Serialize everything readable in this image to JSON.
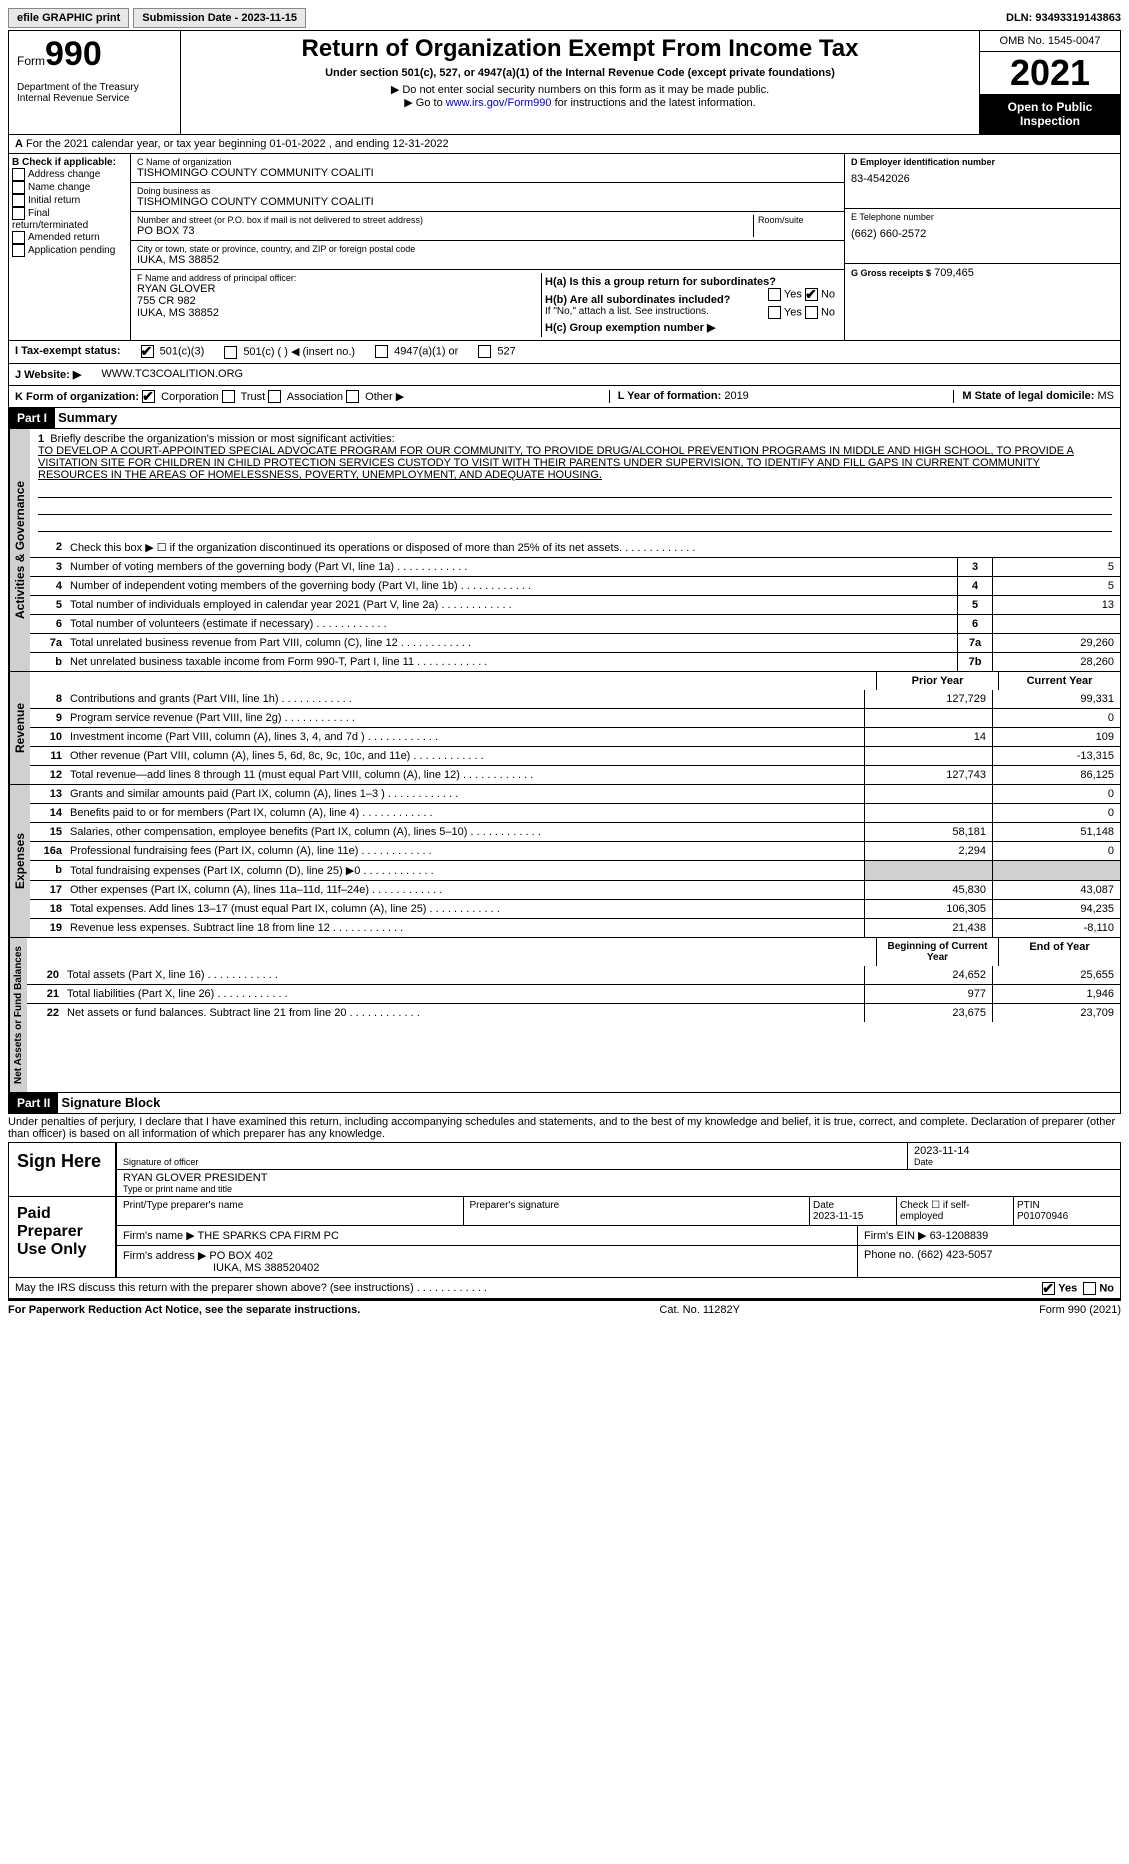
{
  "topbar": {
    "efile": "efile GRAPHIC print",
    "subdate_lbl": "Submission Date - ",
    "subdate": "2023-11-15",
    "dln_lbl": "DLN: ",
    "dln": "93493319143863"
  },
  "header": {
    "form_word": "Form",
    "form_num": "990",
    "dept": "Department of the Treasury\nInternal Revenue Service",
    "title": "Return of Organization Exempt From Income Tax",
    "sub": "Under section 501(c), 527, or 4947(a)(1) of the Internal Revenue Code (except private foundations)",
    "line1": "▶ Do not enter social security numbers on this form as it may be made public.",
    "line2_pre": "▶ Go to ",
    "line2_link": "www.irs.gov/Form990",
    "line2_post": " for instructions and the latest information.",
    "omb": "OMB No. 1545-0047",
    "year": "2021",
    "open": "Open to Public Inspection"
  },
  "rowA": {
    "text": "For the 2021 calendar year, or tax year beginning 01-01-2022    , and ending 12-31-2022"
  },
  "boxB": {
    "hdr": "B Check if applicable:",
    "opts": [
      "Address change",
      "Name change",
      "Initial return",
      "Final return/terminated",
      "Amended return",
      "Application pending"
    ]
  },
  "boxC": {
    "name_lbl": "C Name of organization",
    "name": "TISHOMINGO COUNTY COMMUNITY COALITI",
    "dba_lbl": "Doing business as",
    "dba": "TISHOMINGO COUNTY COMMUNITY COALITI",
    "addr_lbl": "Number and street (or P.O. box if mail is not delivered to street address)",
    "room_lbl": "Room/suite",
    "addr": "PO BOX 73",
    "city_lbl": "City or town, state or province, country, and ZIP or foreign postal code",
    "city": "IUKA, MS  38852",
    "officer_lbl": "F  Name and address of principal officer:",
    "officer": "RYAN GLOVER\n755 CR 982\nIUKA, MS  38852"
  },
  "boxD": {
    "ein_lbl": "D Employer identification number",
    "ein": "83-4542026",
    "tel_lbl": "E Telephone number",
    "tel": "(662) 660-2572",
    "gross_lbl": "G Gross receipts $",
    "gross": "709,465"
  },
  "boxH": {
    "ha": "H(a)  Is this a group return for subordinates?",
    "hb": "H(b)  Are all subordinates included?",
    "hb_note": "If \"No,\" attach a list. See instructions.",
    "hc": "H(c)  Group exemption number ▶",
    "yes": "Yes",
    "no": "No"
  },
  "rowI": {
    "lbl": "I    Tax-exempt status:",
    "o1": "501(c)(3)",
    "o2": "501(c) (  ) ◀ (insert no.)",
    "o3": "4947(a)(1) or",
    "o4": "527"
  },
  "rowJ": {
    "lbl": "J   Website: ▶",
    "val": "WWW.TC3COALITION.ORG"
  },
  "rowK": {
    "lbl": "K Form of organization:",
    "o1": "Corporation",
    "o2": "Trust",
    "o3": "Association",
    "o4": "Other ▶",
    "l_lbl": "L Year of formation: ",
    "l_val": "2019",
    "m_lbl": "M State of legal domicile: ",
    "m_val": "MS"
  },
  "part1": {
    "hdr": "Part I",
    "title": "Summary"
  },
  "mission": {
    "num": "1",
    "lbl": "Briefly describe the organization's mission or most significant activities:",
    "text": "TO DEVELOP A COURT-APPOINTED SPECIAL ADVOCATE PROGRAM FOR OUR COMMUNITY, TO PROVIDE DRUG/ALCOHOL PREVENTION PROGRAMS IN MIDDLE AND HIGH SCHOOL, TO PROVIDE A VISITATION SITE FOR CHILDREN IN CHILD PROTECTION SERVICES CUSTODY TO VISIT WITH THEIR PARENTS UNDER SUPERVISION, TO IDENTIFY AND FILL GAPS IN CURRENT COMMUNITY RESOURCES IN THE AREAS OF HOMELESSNESS, POVERTY, UNEMPLOYMENT, AND ADEQUATE HOUSING."
  },
  "gov_lines": [
    {
      "n": "2",
      "t": "Check this box ▶ ☐  if the organization discontinued its operations or disposed of more than 25% of its net assets."
    },
    {
      "n": "3",
      "t": "Number of voting members of the governing body (Part VI, line 1a)",
      "b": "3",
      "v": "5"
    },
    {
      "n": "4",
      "t": "Number of independent voting members of the governing body (Part VI, line 1b)",
      "b": "4",
      "v": "5"
    },
    {
      "n": "5",
      "t": "Total number of individuals employed in calendar year 2021 (Part V, line 2a)",
      "b": "5",
      "v": "13"
    },
    {
      "n": "6",
      "t": "Total number of volunteers (estimate if necessary)",
      "b": "6",
      "v": ""
    },
    {
      "n": "7a",
      "t": "Total unrelated business revenue from Part VIII, column (C), line 12",
      "b": "7a",
      "v": "29,260"
    },
    {
      "n": "b",
      "t": "Net unrelated business taxable income from Form 990-T, Part I, line 11",
      "b": "7b",
      "v": "28,260"
    }
  ],
  "cols": {
    "prior": "Prior Year",
    "current": "Current Year",
    "begin": "Beginning of Current Year",
    "end": "End of Year"
  },
  "rev_lines": [
    {
      "n": "8",
      "t": "Contributions and grants (Part VIII, line 1h)",
      "p": "127,729",
      "c": "99,331"
    },
    {
      "n": "9",
      "t": "Program service revenue (Part VIII, line 2g)",
      "p": "",
      "c": "0"
    },
    {
      "n": "10",
      "t": "Investment income (Part VIII, column (A), lines 3, 4, and 7d )",
      "p": "14",
      "c": "109"
    },
    {
      "n": "11",
      "t": "Other revenue (Part VIII, column (A), lines 5, 6d, 8c, 9c, 10c, and 11e)",
      "p": "",
      "c": "-13,315"
    },
    {
      "n": "12",
      "t": "Total revenue—add lines 8 through 11 (must equal Part VIII, column (A), line 12)",
      "p": "127,743",
      "c": "86,125"
    }
  ],
  "exp_lines": [
    {
      "n": "13",
      "t": "Grants and similar amounts paid (Part IX, column (A), lines 1–3 )",
      "p": "",
      "c": "0"
    },
    {
      "n": "14",
      "t": "Benefits paid to or for members (Part IX, column (A), line 4)",
      "p": "",
      "c": "0"
    },
    {
      "n": "15",
      "t": "Salaries, other compensation, employee benefits (Part IX, column (A), lines 5–10)",
      "p": "58,181",
      "c": "51,148"
    },
    {
      "n": "16a",
      "t": "Professional fundraising fees (Part IX, column (A), line 11e)",
      "p": "2,294",
      "c": "0"
    },
    {
      "n": "b",
      "t": "Total fundraising expenses (Part IX, column (D), line 25) ▶0",
      "shade_p": true,
      "shade_c": true
    },
    {
      "n": "17",
      "t": "Other expenses (Part IX, column (A), lines 11a–11d, 11f–24e)",
      "p": "45,830",
      "c": "43,087"
    },
    {
      "n": "18",
      "t": "Total expenses. Add lines 13–17 (must equal Part IX, column (A), line 25)",
      "p": "106,305",
      "c": "94,235"
    },
    {
      "n": "19",
      "t": "Revenue less expenses. Subtract line 18 from line 12",
      "p": "21,438",
      "c": "-8,110"
    }
  ],
  "net_lines": [
    {
      "n": "20",
      "t": "Total assets (Part X, line 16)",
      "p": "24,652",
      "c": "25,655"
    },
    {
      "n": "21",
      "t": "Total liabilities (Part X, line 26)",
      "p": "977",
      "c": "1,946"
    },
    {
      "n": "22",
      "t": "Net assets or fund balances. Subtract line 21 from line 20",
      "p": "23,675",
      "c": "23,709"
    }
  ],
  "part2": {
    "hdr": "Part II",
    "title": "Signature Block",
    "perjury": "Under penalties of perjury, I declare that I have examined this return, including accompanying schedules and statements, and to the best of my knowledge and belief, it is true, correct, and complete. Declaration of preparer (other than officer) is based on all information of which preparer has any knowledge."
  },
  "sign": {
    "here": "Sign Here",
    "sig_lbl": "Signature of officer",
    "date_lbl": "Date",
    "date": "2023-11-14",
    "name_lbl": "Type or print name and title",
    "name": "RYAN GLOVER PRESIDENT"
  },
  "paid": {
    "lbl": "Paid Preparer Use Only",
    "prep_lbl": "Print/Type preparer's name",
    "sig_lbl": "Preparer's signature",
    "date_lbl": "Date",
    "date": "2023-11-15",
    "check_lbl": "Check ☐ if self-employed",
    "ptin_lbl": "PTIN",
    "ptin": "P01070946",
    "firm_lbl": "Firm's name   ▶",
    "firm": "THE SPARKS CPA FIRM PC",
    "ein_lbl": "Firm's EIN ▶",
    "ein": "63-1208839",
    "addr_lbl": "Firm's address ▶",
    "addr": "PO BOX 402",
    "city": "IUKA, MS  388520402",
    "phone_lbl": "Phone no.",
    "phone": "(662) 423-5057"
  },
  "discuss": {
    "t": "May the IRS discuss this return with the preparer shown above? (see instructions)",
    "yes": "Yes",
    "no": "No"
  },
  "footer": {
    "l": "For Paperwork Reduction Act Notice, see the separate instructions.",
    "c": "Cat. No. 11282Y",
    "r": "Form 990 (2021)"
  },
  "tabs": {
    "gov": "Activities & Governance",
    "rev": "Revenue",
    "exp": "Expenses",
    "net": "Net Assets or Fund Balances"
  }
}
